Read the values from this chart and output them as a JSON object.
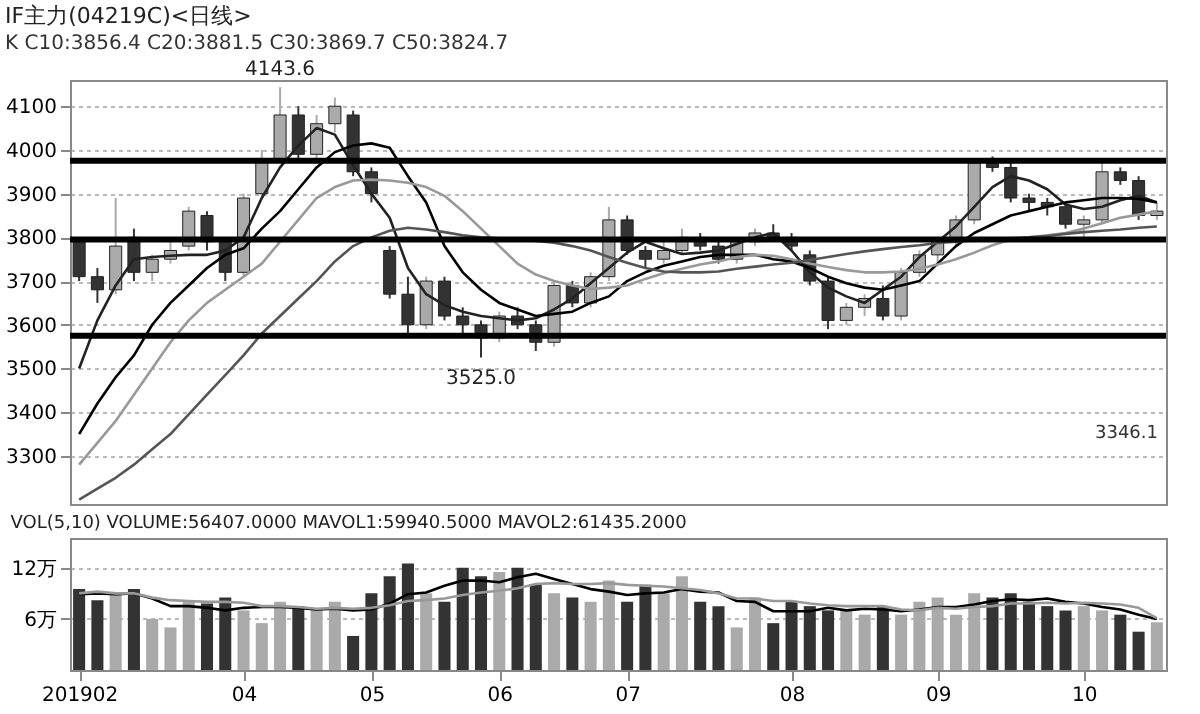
{
  "chart_data": [
    {
      "type": "candlestick",
      "title": "IF主力(04219C)<日线>",
      "subtitle": "K C10:3856.4 C20:3881.5 C30:3869.7 C50:3824.7",
      "categories": [
        "201902",
        null,
        null,
        null,
        null,
        null,
        null,
        null,
        null,
        "04",
        null,
        null,
        null,
        null,
        null,
        null,
        "05",
        null,
        null,
        null,
        null,
        null,
        null,
        "06",
        null,
        null,
        null,
        null,
        null,
        null,
        "07",
        null,
        null,
        null,
        null,
        null,
        null,
        null,
        null,
        "08",
        null,
        null,
        null,
        null,
        null,
        null,
        null,
        "09",
        null,
        null,
        null,
        null,
        null,
        null,
        null,
        "10",
        null,
        null,
        null,
        null
      ],
      "ohlc": [
        [
          3790,
          3800,
          3700,
          3710
        ],
        [
          3710,
          3730,
          3650,
          3680
        ],
        [
          3680,
          3890,
          3670,
          3780
        ],
        [
          3800,
          3820,
          3700,
          3720
        ],
        [
          3720,
          3760,
          3700,
          3750
        ],
        [
          3750,
          3790,
          3740,
          3770
        ],
        [
          3780,
          3870,
          3770,
          3860
        ],
        [
          3850,
          3860,
          3770,
          3790
        ],
        [
          3790,
          3800,
          3700,
          3720
        ],
        [
          3720,
          3900,
          3710,
          3890
        ],
        [
          3900,
          4000,
          3890,
          3980
        ],
        [
          3980,
          4143.6,
          3970,
          4080
        ],
        [
          4080,
          4100,
          3980,
          3990
        ],
        [
          3990,
          4080,
          3970,
          4060
        ],
        [
          4060,
          4120,
          4040,
          4100
        ],
        [
          4080,
          4090,
          3940,
          3950
        ],
        [
          3950,
          3960,
          3880,
          3900
        ],
        [
          3770,
          3780,
          3660,
          3670
        ],
        [
          3670,
          3710,
          3580,
          3600
        ],
        [
          3600,
          3710,
          3590,
          3700
        ],
        [
          3700,
          3710,
          3610,
          3620
        ],
        [
          3620,
          3640,
          3580,
          3600
        ],
        [
          3600,
          3610,
          3525,
          3570
        ],
        [
          3570,
          3630,
          3560,
          3620
        ],
        [
          3620,
          3640,
          3590,
          3600
        ],
        [
          3600,
          3610,
          3540,
          3560
        ],
        [
          3560,
          3700,
          3550,
          3690
        ],
        [
          3690,
          3700,
          3640,
          3650
        ],
        [
          3650,
          3720,
          3640,
          3710
        ],
        [
          3710,
          3870,
          3700,
          3840
        ],
        [
          3840,
          3850,
          3760,
          3770
        ],
        [
          3770,
          3780,
          3730,
          3750
        ],
        [
          3750,
          3790,
          3740,
          3770
        ],
        [
          3770,
          3820,
          3760,
          3800
        ],
        [
          3800,
          3810,
          3770,
          3780
        ],
        [
          3780,
          3790,
          3740,
          3750
        ],
        [
          3750,
          3800,
          3740,
          3790
        ],
        [
          3790,
          3820,
          3780,
          3810
        ],
        [
          3810,
          3830,
          3790,
          3800
        ],
        [
          3800,
          3810,
          3770,
          3780
        ],
        [
          3760,
          3770,
          3690,
          3700
        ],
        [
          3700,
          3710,
          3590,
          3610
        ],
        [
          3610,
          3650,
          3600,
          3640
        ],
        [
          3640,
          3670,
          3620,
          3660
        ],
        [
          3660,
          3690,
          3610,
          3620
        ],
        [
          3620,
          3730,
          3610,
          3720
        ],
        [
          3720,
          3770,
          3710,
          3760
        ],
        [
          3760,
          3800,
          3740,
          3790
        ],
        [
          3790,
          3850,
          3780,
          3840
        ],
        [
          3840,
          3980,
          3830,
          3970
        ],
        [
          3970,
          3985,
          3950,
          3960
        ],
        [
          3960,
          3970,
          3880,
          3890
        ],
        [
          3890,
          3900,
          3860,
          3880
        ],
        [
          3880,
          3890,
          3850,
          3870
        ],
        [
          3870,
          3880,
          3820,
          3830
        ],
        [
          3830,
          3850,
          3800,
          3840
        ],
        [
          3840,
          3980,
          3830,
          3950
        ],
        [
          3950,
          3960,
          3920,
          3930
        ],
        [
          3930,
          3940,
          3840,
          3850
        ],
        [
          3850,
          3880,
          3840,
          3860
        ]
      ],
      "colors": [
        "#333333",
        "#333333",
        "#aaaaaa",
        "#333333",
        "#aaaaaa",
        "#aaaaaa",
        "#aaaaaa",
        "#333333",
        "#333333",
        "#aaaaaa",
        "#aaaaaa",
        "#aaaaaa",
        "#333333",
        "#aaaaaa",
        "#aaaaaa",
        "#333333",
        "#333333",
        "#333333",
        "#333333",
        "#aaaaaa",
        "#333333",
        "#333333",
        "#333333",
        "#aaaaaa",
        "#333333",
        "#333333",
        "#aaaaaa",
        "#333333",
        "#aaaaaa",
        "#aaaaaa",
        "#333333",
        "#333333",
        "#aaaaaa",
        "#aaaaaa",
        "#333333",
        "#333333",
        "#aaaaaa",
        "#aaaaaa",
        "#333333",
        "#333333",
        "#333333",
        "#333333",
        "#aaaaaa",
        "#aaaaaa",
        "#333333",
        "#aaaaaa",
        "#aaaaaa",
        "#aaaaaa",
        "#aaaaaa",
        "#aaaaaa",
        "#333333",
        "#333333",
        "#333333",
        "#333333",
        "#333333",
        "#aaaaaa",
        "#aaaaaa",
        "#333333",
        "#333333",
        "#aaaaaa"
      ],
      "series": [
        {
          "type": "line",
          "color": "#222222",
          "values": [
            3500,
            3610,
            3690,
            3750,
            3755,
            3758,
            3760,
            3760,
            3770,
            3800,
            3890,
            3960,
            4010,
            4050,
            4035,
            3965,
            3900,
            3845,
            3730,
            3670,
            3645,
            3630,
            3620,
            3615,
            3610,
            3615,
            3635,
            3660,
            3695,
            3730,
            3765,
            3790,
            3775,
            3762,
            3765,
            3770,
            3785,
            3800,
            3810,
            3770,
            3720,
            3685,
            3665,
            3650,
            3680,
            3710,
            3755,
            3790,
            3825,
            3870,
            3915,
            3940,
            3930,
            3910,
            3875,
            3865,
            3870,
            3885,
            3895,
            3880
          ]
        },
        {
          "type": "line",
          "color": "#000000",
          "values": [
            3350,
            3420,
            3480,
            3530,
            3600,
            3650,
            3690,
            3730,
            3760,
            3775,
            3820,
            3860,
            3910,
            3960,
            3995,
            4010,
            4015,
            4005,
            3940,
            3880,
            3780,
            3720,
            3680,
            3650,
            3635,
            3620,
            3625,
            3630,
            3650,
            3665,
            3700,
            3720,
            3735,
            3745,
            3755,
            3760,
            3760,
            3760,
            3750,
            3745,
            3730,
            3710,
            3695,
            3685,
            3680,
            3690,
            3700,
            3740,
            3780,
            3810,
            3830,
            3850,
            3860,
            3870,
            3880,
            3885,
            3890,
            3890,
            3888,
            3880
          ]
        },
        {
          "type": "line",
          "color": "#999999",
          "values": [
            3280,
            3330,
            3380,
            3440,
            3500,
            3560,
            3610,
            3650,
            3680,
            3710,
            3740,
            3790,
            3840,
            3890,
            3915,
            3930,
            3932,
            3930,
            3925,
            3915,
            3895,
            3860,
            3820,
            3780,
            3740,
            3715,
            3700,
            3690,
            3682,
            3685,
            3690,
            3705,
            3718,
            3728,
            3738,
            3745,
            3755,
            3760,
            3758,
            3750,
            3740,
            3732,
            3725,
            3720,
            3720,
            3722,
            3728,
            3738,
            3750,
            3765,
            3782,
            3795,
            3800,
            3805,
            3810,
            3820,
            3832,
            3845,
            3852,
            3860
          ]
        },
        {
          "type": "line",
          "color": "#555555",
          "values": [
            3200,
            3225,
            3250,
            3280,
            3315,
            3350,
            3395,
            3440,
            3485,
            3530,
            3580,
            3620,
            3660,
            3700,
            3745,
            3780,
            3800,
            3815,
            3822,
            3818,
            3812,
            3805,
            3800,
            3798,
            3795,
            3792,
            3788,
            3780,
            3770,
            3755,
            3742,
            3730,
            3722,
            3720,
            3720,
            3722,
            3728,
            3733,
            3738,
            3742,
            3748,
            3755,
            3762,
            3768,
            3773,
            3778,
            3782,
            3787,
            3790,
            3793,
            3795,
            3798,
            3800,
            3803,
            3808,
            3812,
            3815,
            3818,
            3822,
            3825
          ]
        }
      ],
      "ylim": [
        3190,
        4160
      ],
      "yticks": [
        3300,
        3400,
        3500,
        3600,
        3700,
        3800,
        3900,
        4000,
        4100
      ],
      "grid": "y",
      "tick_labels": "y",
      "ref_lines": [
        {
          "axis": "y",
          "value": 3975,
          "color": "#000000"
        },
        {
          "axis": "y",
          "value": 3795,
          "color": "#000000"
        },
        {
          "axis": "y",
          "value": 3575,
          "color": "#000000"
        }
      ],
      "annotations": [
        {
          "text": "4143.6",
          "y": 4143.6
        },
        {
          "text": "3525.0",
          "y": 3525
        },
        "3346.1"
      ]
    },
    {
      "type": "bar",
      "title": "VOL(5,10) VOLUME:56407.0000 MAVOL1:59940.5000 MAVOL2:61435.2000",
      "categories": [
        "201902",
        null,
        null,
        null,
        null,
        null,
        null,
        null,
        null,
        "04",
        null,
        null,
        null,
        null,
        null,
        null,
        "05",
        null,
        null,
        null,
        null,
        null,
        null,
        "06",
        null,
        null,
        null,
        null,
        null,
        null,
        "07",
        null,
        null,
        null,
        null,
        null,
        null,
        null,
        null,
        "08",
        null,
        null,
        null,
        null,
        null,
        null,
        null,
        "09",
        null,
        null,
        null,
        null,
        null,
        null,
        null,
        "10",
        null,
        null,
        null,
        null
      ],
      "series": [
        {
          "type": "bar",
          "colors": [
            "#333333",
            "#333333",
            "#aaaaaa",
            "#333333",
            "#aaaaaa",
            "#aaaaaa",
            "#aaaaaa",
            "#333333",
            "#333333",
            "#aaaaaa",
            "#aaaaaa",
            "#aaaaaa",
            "#333333",
            "#aaaaaa",
            "#aaaaaa",
            "#333333",
            "#333333",
            "#333333",
            "#333333",
            "#aaaaaa",
            "#333333",
            "#333333",
            "#333333",
            "#aaaaaa",
            "#333333",
            "#333333",
            "#aaaaaa",
            "#333333",
            "#aaaaaa",
            "#aaaaaa",
            "#333333",
            "#333333",
            "#aaaaaa",
            "#aaaaaa",
            "#333333",
            "#333333",
            "#aaaaaa",
            "#aaaaaa",
            "#333333",
            "#333333",
            "#333333",
            "#333333",
            "#aaaaaa",
            "#aaaaaa",
            "#333333",
            "#aaaaaa",
            "#aaaaaa",
            "#aaaaaa",
            "#aaaaaa",
            "#aaaaaa",
            "#333333",
            "#333333",
            "#333333",
            "#333333",
            "#333333",
            "#aaaaaa",
            "#aaaaaa",
            "#333333",
            "#333333",
            "#aaaaaa"
          ],
          "values": [
            9.5,
            8.2,
            9,
            9.5,
            6,
            5,
            8,
            7.8,
            8.5,
            7,
            5.5,
            8,
            7.5,
            7.2,
            8,
            4,
            9,
            11,
            12.5,
            9,
            8,
            12,
            11,
            11.5,
            12,
            10,
            9,
            8.5,
            8,
            10.5,
            8,
            10,
            9,
            11,
            8,
            7.5,
            5,
            8.5,
            5.5,
            8,
            7.5,
            7,
            7,
            6.5,
            7.5,
            6.5,
            8,
            8.5,
            6.5,
            9,
            8.5,
            9,
            8,
            7.5,
            7,
            7.5,
            7,
            6.5,
            4.5,
            5.6
          ]
        },
        {
          "type": "line",
          "color": "#000000",
          "values": [
            8.9,
            9,
            8.9,
            9,
            8.4,
            7.5,
            7.5,
            7.3,
            7,
            7.3,
            7.4,
            7.4,
            7.3,
            7.1,
            7.2,
            7,
            7.1,
            7.8,
            8.9,
            9.1,
            9.9,
            10.5,
            10.5,
            10.3,
            10.9,
            11.3,
            10.7,
            10.1,
            9.5,
            9.2,
            8.8,
            9,
            9.1,
            9.5,
            9.2,
            9.1,
            8.1,
            8,
            6.9,
            6.9,
            6.9,
            7.3,
            7,
            7.2,
            7.1,
            6.9,
            7.1,
            7.4,
            7.4,
            7.7,
            8.1,
            8.3,
            8.2,
            8.4,
            8,
            7.8,
            7.4,
            7.1,
            6.5,
            6
          ]
        },
        {
          "type": "line",
          "color": "#999999",
          "values": [
            9,
            9.2,
            9,
            9,
            8.5,
            8.2,
            8.1,
            8,
            8,
            7.9,
            7.5,
            7.5,
            7.4,
            7.2,
            7.3,
            7.2,
            7.3,
            7.6,
            8.1,
            8.2,
            8.4,
            8.8,
            9.1,
            9.3,
            9.6,
            10.1,
            10.2,
            10.1,
            10.1,
            10.2,
            10,
            9.9,
            9.8,
            9.6,
            9.4,
            9,
            8.4,
            8.4,
            8.1,
            8.1,
            7.8,
            7.6,
            7.5,
            7.5,
            7.5,
            7.1,
            7,
            7.3,
            7.2,
            7.4,
            7.5,
            7.8,
            7.8,
            7.9,
            7.8,
            7.9,
            7.8,
            7.7,
            7.3,
            6.1
          ]
        }
      ],
      "ylim": [
        0,
        15.5
      ],
      "yticks": [
        {
          "value": 6,
          "label": "6万"
        },
        {
          "value": 12,
          "label": "12万"
        }
      ],
      "grid": "y"
    }
  ]
}
